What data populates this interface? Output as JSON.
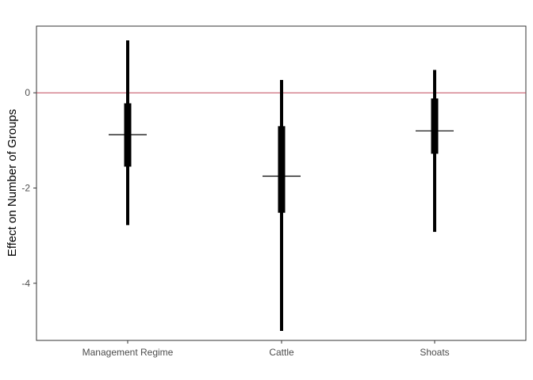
{
  "chart_data": {
    "type": "interval",
    "ylabel": "Effect on Number of Groups",
    "xlabel": "",
    "categories": [
      "Management Regime",
      "Cattle",
      "Shoats"
    ],
    "ylim": [
      -5.2,
      1.4
    ],
    "y_ticks": [
      0,
      -2,
      -4
    ],
    "reference_line": {
      "y": 0,
      "color": "#c0485a"
    },
    "estimates": [
      {
        "category": "Management Regime",
        "median": -0.88,
        "inner": [
          -1.55,
          -0.22
        ],
        "outer": [
          -2.78,
          1.1
        ]
      },
      {
        "category": "Cattle",
        "median": -1.75,
        "inner": [
          -2.52,
          -0.7
        ],
        "outer": [
          -5.0,
          0.27
        ]
      },
      {
        "category": "Shoats",
        "median": -0.8,
        "inner": [
          -1.28,
          -0.12
        ],
        "outer": [
          -2.92,
          0.48
        ]
      }
    ],
    "grid": false,
    "mark_color": "#000000"
  }
}
